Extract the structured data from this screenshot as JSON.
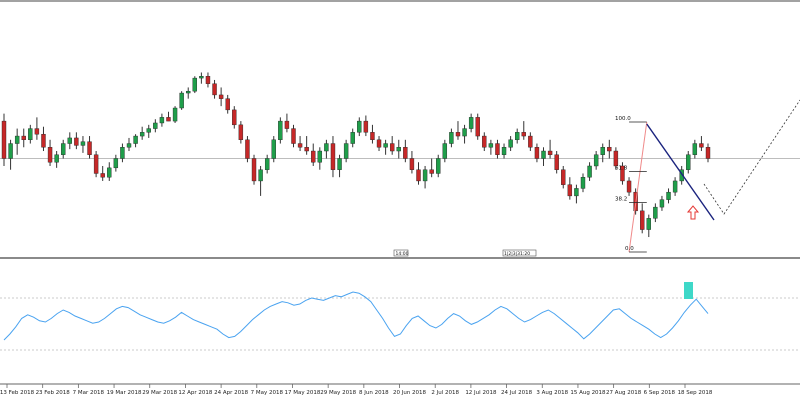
{
  "chart_data": [
    {
      "type": "candlestick",
      "panel": "price",
      "title": "",
      "hline_level": 0.5,
      "fib_levels": [
        {
          "label": "100.0",
          "value": 100.0
        },
        {
          "label": "61.8",
          "value": 61.8
        },
        {
          "label": "38.2",
          "value": 38.2
        },
        {
          "label": "0.0",
          "value": 0.0
        }
      ],
      "marker_labels": [
        "14:00",
        "1|2|3|31:20"
      ],
      "annotations": [
        "downtrend-line",
        "fib-retracement",
        "projection-path",
        "up-arrow"
      ],
      "candles": [
        {
          "o": 0.7,
          "h": 0.74,
          "l": 0.46,
          "c": 0.5
        },
        {
          "o": 0.5,
          "h": 0.6,
          "l": 0.44,
          "c": 0.58
        },
        {
          "o": 0.58,
          "h": 0.66,
          "l": 0.52,
          "c": 0.62
        },
        {
          "o": 0.62,
          "h": 0.66,
          "l": 0.56,
          "c": 0.6
        },
        {
          "o": 0.6,
          "h": 0.68,
          "l": 0.58,
          "c": 0.66
        },
        {
          "o": 0.66,
          "h": 0.72,
          "l": 0.6,
          "c": 0.63
        },
        {
          "o": 0.63,
          "h": 0.67,
          "l": 0.54,
          "c": 0.56
        },
        {
          "o": 0.56,
          "h": 0.6,
          "l": 0.46,
          "c": 0.48
        },
        {
          "o": 0.48,
          "h": 0.54,
          "l": 0.45,
          "c": 0.52
        },
        {
          "o": 0.52,
          "h": 0.6,
          "l": 0.5,
          "c": 0.58
        },
        {
          "o": 0.58,
          "h": 0.64,
          "l": 0.55,
          "c": 0.61
        },
        {
          "o": 0.61,
          "h": 0.64,
          "l": 0.55,
          "c": 0.57
        },
        {
          "o": 0.57,
          "h": 0.62,
          "l": 0.53,
          "c": 0.59
        },
        {
          "o": 0.59,
          "h": 0.62,
          "l": 0.5,
          "c": 0.52
        },
        {
          "o": 0.52,
          "h": 0.54,
          "l": 0.4,
          "c": 0.42
        },
        {
          "o": 0.42,
          "h": 0.46,
          "l": 0.38,
          "c": 0.4
        },
        {
          "o": 0.4,
          "h": 0.48,
          "l": 0.38,
          "c": 0.45
        },
        {
          "o": 0.45,
          "h": 0.52,
          "l": 0.43,
          "c": 0.5
        },
        {
          "o": 0.5,
          "h": 0.58,
          "l": 0.48,
          "c": 0.56
        },
        {
          "o": 0.56,
          "h": 0.61,
          "l": 0.54,
          "c": 0.58
        },
        {
          "o": 0.58,
          "h": 0.63,
          "l": 0.56,
          "c": 0.62
        },
        {
          "o": 0.62,
          "h": 0.67,
          "l": 0.6,
          "c": 0.64
        },
        {
          "o": 0.64,
          "h": 0.68,
          "l": 0.61,
          "c": 0.66
        },
        {
          "o": 0.66,
          "h": 0.71,
          "l": 0.64,
          "c": 0.69
        },
        {
          "o": 0.69,
          "h": 0.74,
          "l": 0.67,
          "c": 0.72
        },
        {
          "o": 0.72,
          "h": 0.75,
          "l": 0.7,
          "c": 0.7
        },
        {
          "o": 0.7,
          "h": 0.78,
          "l": 0.69,
          "c": 0.77
        },
        {
          "o": 0.77,
          "h": 0.86,
          "l": 0.76,
          "c": 0.85
        },
        {
          "o": 0.85,
          "h": 0.88,
          "l": 0.82,
          "c": 0.86
        },
        {
          "o": 0.86,
          "h": 0.94,
          "l": 0.85,
          "c": 0.93
        },
        {
          "o": 0.93,
          "h": 0.96,
          "l": 0.9,
          "c": 0.94
        },
        {
          "o": 0.94,
          "h": 0.96,
          "l": 0.88,
          "c": 0.9
        },
        {
          "o": 0.9,
          "h": 0.92,
          "l": 0.82,
          "c": 0.84
        },
        {
          "o": 0.84,
          "h": 0.88,
          "l": 0.78,
          "c": 0.82
        },
        {
          "o": 0.82,
          "h": 0.84,
          "l": 0.74,
          "c": 0.76
        },
        {
          "o": 0.76,
          "h": 0.78,
          "l": 0.66,
          "c": 0.68
        },
        {
          "o": 0.68,
          "h": 0.7,
          "l": 0.58,
          "c": 0.6
        },
        {
          "o": 0.6,
          "h": 0.62,
          "l": 0.48,
          "c": 0.5
        },
        {
          "o": 0.5,
          "h": 0.52,
          "l": 0.36,
          "c": 0.38
        },
        {
          "o": 0.38,
          "h": 0.46,
          "l": 0.3,
          "c": 0.44
        },
        {
          "o": 0.44,
          "h": 0.52,
          "l": 0.42,
          "c": 0.5
        },
        {
          "o": 0.5,
          "h": 0.62,
          "l": 0.48,
          "c": 0.6
        },
        {
          "o": 0.6,
          "h": 0.72,
          "l": 0.58,
          "c": 0.7
        },
        {
          "o": 0.7,
          "h": 0.74,
          "l": 0.64,
          "c": 0.66
        },
        {
          "o": 0.66,
          "h": 0.68,
          "l": 0.56,
          "c": 0.58
        },
        {
          "o": 0.58,
          "h": 0.62,
          "l": 0.54,
          "c": 0.56
        },
        {
          "o": 0.56,
          "h": 0.62,
          "l": 0.52,
          "c": 0.54
        },
        {
          "o": 0.54,
          "h": 0.58,
          "l": 0.46,
          "c": 0.48
        },
        {
          "o": 0.48,
          "h": 0.56,
          "l": 0.44,
          "c": 0.54
        },
        {
          "o": 0.54,
          "h": 0.6,
          "l": 0.5,
          "c": 0.58
        },
        {
          "o": 0.58,
          "h": 0.62,
          "l": 0.4,
          "c": 0.44
        },
        {
          "o": 0.44,
          "h": 0.52,
          "l": 0.4,
          "c": 0.5
        },
        {
          "o": 0.5,
          "h": 0.6,
          "l": 0.48,
          "c": 0.58
        },
        {
          "o": 0.58,
          "h": 0.66,
          "l": 0.56,
          "c": 0.64
        },
        {
          "o": 0.64,
          "h": 0.72,
          "l": 0.62,
          "c": 0.7
        },
        {
          "o": 0.7,
          "h": 0.73,
          "l": 0.62,
          "c": 0.64
        },
        {
          "o": 0.64,
          "h": 0.68,
          "l": 0.58,
          "c": 0.6
        },
        {
          "o": 0.6,
          "h": 0.62,
          "l": 0.54,
          "c": 0.56
        },
        {
          "o": 0.56,
          "h": 0.6,
          "l": 0.52,
          "c": 0.58
        },
        {
          "o": 0.58,
          "h": 0.62,
          "l": 0.52,
          "c": 0.54
        },
        {
          "o": 0.54,
          "h": 0.6,
          "l": 0.5,
          "c": 0.56
        },
        {
          "o": 0.56,
          "h": 0.6,
          "l": 0.48,
          "c": 0.5
        },
        {
          "o": 0.5,
          "h": 0.54,
          "l": 0.42,
          "c": 0.44
        },
        {
          "o": 0.44,
          "h": 0.48,
          "l": 0.36,
          "c": 0.38
        },
        {
          "o": 0.38,
          "h": 0.46,
          "l": 0.34,
          "c": 0.44
        },
        {
          "o": 0.44,
          "h": 0.5,
          "l": 0.4,
          "c": 0.42
        },
        {
          "o": 0.42,
          "h": 0.52,
          "l": 0.4,
          "c": 0.5
        },
        {
          "o": 0.5,
          "h": 0.6,
          "l": 0.48,
          "c": 0.58
        },
        {
          "o": 0.58,
          "h": 0.66,
          "l": 0.56,
          "c": 0.64
        },
        {
          "o": 0.64,
          "h": 0.7,
          "l": 0.6,
          "c": 0.62
        },
        {
          "o": 0.62,
          "h": 0.68,
          "l": 0.58,
          "c": 0.66
        },
        {
          "o": 0.66,
          "h": 0.74,
          "l": 0.64,
          "c": 0.72
        },
        {
          "o": 0.72,
          "h": 0.74,
          "l": 0.6,
          "c": 0.62
        },
        {
          "o": 0.62,
          "h": 0.64,
          "l": 0.54,
          "c": 0.56
        },
        {
          "o": 0.56,
          "h": 0.6,
          "l": 0.52,
          "c": 0.58
        },
        {
          "o": 0.58,
          "h": 0.6,
          "l": 0.5,
          "c": 0.52
        },
        {
          "o": 0.52,
          "h": 0.58,
          "l": 0.5,
          "c": 0.56
        },
        {
          "o": 0.56,
          "h": 0.62,
          "l": 0.54,
          "c": 0.6
        },
        {
          "o": 0.6,
          "h": 0.66,
          "l": 0.58,
          "c": 0.64
        },
        {
          "o": 0.64,
          "h": 0.7,
          "l": 0.6,
          "c": 0.62
        },
        {
          "o": 0.62,
          "h": 0.64,
          "l": 0.54,
          "c": 0.56
        },
        {
          "o": 0.56,
          "h": 0.58,
          "l": 0.48,
          "c": 0.5
        },
        {
          "o": 0.5,
          "h": 0.56,
          "l": 0.46,
          "c": 0.54
        },
        {
          "o": 0.54,
          "h": 0.6,
          "l": 0.5,
          "c": 0.52
        },
        {
          "o": 0.52,
          "h": 0.54,
          "l": 0.42,
          "c": 0.44
        },
        {
          "o": 0.44,
          "h": 0.46,
          "l": 0.34,
          "c": 0.36
        },
        {
          "o": 0.36,
          "h": 0.4,
          "l": 0.28,
          "c": 0.3
        },
        {
          "o": 0.3,
          "h": 0.36,
          "l": 0.26,
          "c": 0.34
        },
        {
          "o": 0.34,
          "h": 0.42,
          "l": 0.32,
          "c": 0.4
        },
        {
          "o": 0.4,
          "h": 0.48,
          "l": 0.38,
          "c": 0.46
        },
        {
          "o": 0.46,
          "h": 0.54,
          "l": 0.44,
          "c": 0.52
        },
        {
          "o": 0.52,
          "h": 0.58,
          "l": 0.48,
          "c": 0.56
        },
        {
          "o": 0.56,
          "h": 0.6,
          "l": 0.5,
          "c": 0.54
        },
        {
          "o": 0.54,
          "h": 0.56,
          "l": 0.44,
          "c": 0.46
        },
        {
          "o": 0.46,
          "h": 0.48,
          "l": 0.36,
          "c": 0.38
        },
        {
          "o": 0.38,
          "h": 0.4,
          "l": 0.3,
          "c": 0.32
        },
        {
          "o": 0.32,
          "h": 0.34,
          "l": 0.2,
          "c": 0.22
        },
        {
          "o": 0.22,
          "h": 0.26,
          "l": 0.1,
          "c": 0.12
        },
        {
          "o": 0.12,
          "h": 0.2,
          "l": 0.08,
          "c": 0.18
        },
        {
          "o": 0.18,
          "h": 0.26,
          "l": 0.16,
          "c": 0.24
        },
        {
          "o": 0.24,
          "h": 0.3,
          "l": 0.22,
          "c": 0.28
        },
        {
          "o": 0.28,
          "h": 0.34,
          "l": 0.26,
          "c": 0.32
        },
        {
          "o": 0.32,
          "h": 0.4,
          "l": 0.3,
          "c": 0.38
        },
        {
          "o": 0.38,
          "h": 0.46,
          "l": 0.36,
          "c": 0.44
        },
        {
          "o": 0.44,
          "h": 0.54,
          "l": 0.42,
          "c": 0.52
        },
        {
          "o": 0.52,
          "h": 0.6,
          "l": 0.5,
          "c": 0.58
        },
        {
          "o": 0.58,
          "h": 0.62,
          "l": 0.54,
          "c": 0.56
        },
        {
          "o": 0.56,
          "h": 0.58,
          "l": 0.48,
          "c": 0.5
        }
      ]
    },
    {
      "type": "line",
      "panel": "oscillator",
      "title": "",
      "series": [
        {
          "values": [
            0.2,
            0.3,
            0.42,
            0.56,
            0.62,
            0.58,
            0.52,
            0.5,
            0.56,
            0.64,
            0.7,
            0.66,
            0.6,
            0.56,
            0.52,
            0.48,
            0.5,
            0.56,
            0.64,
            0.72,
            0.76,
            0.74,
            0.68,
            0.62,
            0.58,
            0.54,
            0.5,
            0.48,
            0.52,
            0.58,
            0.66,
            0.6,
            0.54,
            0.5,
            0.46,
            0.42,
            0.38,
            0.3,
            0.24,
            0.26,
            0.34,
            0.44,
            0.54,
            0.62,
            0.7,
            0.76,
            0.8,
            0.84,
            0.82,
            0.78,
            0.8,
            0.86,
            0.9,
            0.88,
            0.86,
            0.9,
            0.94,
            0.92,
            0.96,
            1.0,
            0.98,
            0.92,
            0.84,
            0.7,
            0.56,
            0.4,
            0.26,
            0.3,
            0.44,
            0.56,
            0.6,
            0.52,
            0.44,
            0.4,
            0.46,
            0.56,
            0.64,
            0.6,
            0.52,
            0.46,
            0.5,
            0.56,
            0.62,
            0.7,
            0.76,
            0.72,
            0.64,
            0.56,
            0.5,
            0.54,
            0.6,
            0.66,
            0.7,
            0.64,
            0.56,
            0.48,
            0.4,
            0.32,
            0.22,
            0.3,
            0.4,
            0.5,
            0.6,
            0.7,
            0.72,
            0.64,
            0.56,
            0.5,
            0.44,
            0.38,
            0.3,
            0.24,
            0.3,
            0.4,
            0.52,
            0.66,
            0.78,
            0.88,
            0.76,
            0.64
          ]
        }
      ]
    }
  ],
  "axis": {
    "x_tick_labels": [
      "13 Feb 2018",
      "23 Feb 2018",
      "7 Mar 2018",
      "19 Mar 2018",
      "29 Mar 2018",
      "12 Apr 2018",
      "24 Apr 2018",
      "7 May 2018",
      "17 May 2018",
      "29 May 2018",
      "8 Jun 2018",
      "20 Jun 2018",
      "2 Jul 2018",
      "12 Jul 2018",
      "24 Jul 2018",
      "3 Aug 2018",
      "15 Aug 2018",
      "27 Aug 2018",
      "6 Sep 2018",
      "18 Sep 2018"
    ]
  },
  "colors": {
    "bull": "#1f9e4a",
    "bear": "#c62828",
    "wick": "#333333",
    "trendline": "#1a237e",
    "fib_diag": "#f08a8a",
    "fib_line": "#222222",
    "oscillator": "#4aa3f0",
    "hline": "#bdbdbd",
    "marker": "#3ed8c8",
    "arrow": "#e53935"
  }
}
